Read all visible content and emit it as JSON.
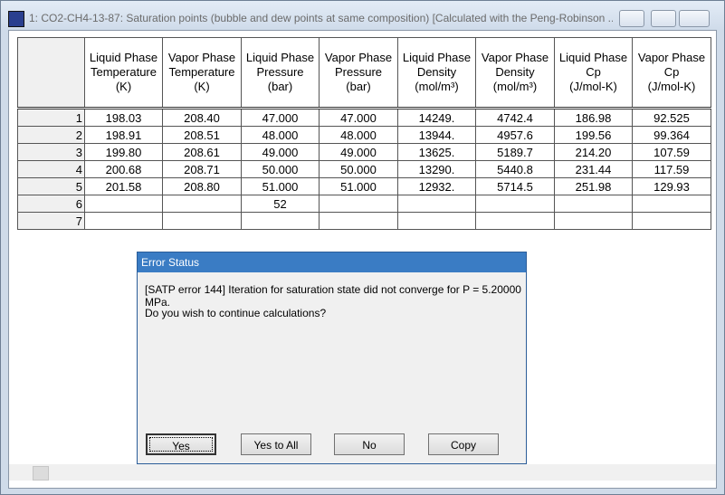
{
  "window": {
    "title": "1: CO2-CH4-13-87: Saturation points (bubble and dew points at same composition) [Calculated with the Peng-Robinson ..."
  },
  "table": {
    "headers": [
      [
        "Liquid Phase",
        "Temperature",
        "(K)"
      ],
      [
        "Vapor Phase",
        "Temperature",
        "(K)"
      ],
      [
        "Liquid Phase",
        "Pressure",
        "(bar)"
      ],
      [
        "Vapor Phase",
        "Pressure",
        "(bar)"
      ],
      [
        "Liquid Phase",
        "Density",
        "(mol/m³)"
      ],
      [
        "Vapor Phase",
        "Density",
        "(mol/m³)"
      ],
      [
        "Liquid Phase",
        "Cp",
        "(J/mol-K)"
      ],
      [
        "Vapor Phase",
        "Cp",
        "(J/mol-K)"
      ]
    ],
    "rows": [
      [
        "1",
        "198.03",
        "208.40",
        "47.000",
        "47.000",
        "14249.",
        "4742.4",
        "186.98",
        "92.525"
      ],
      [
        "2",
        "198.91",
        "208.51",
        "48.000",
        "48.000",
        "13944.",
        "4957.6",
        "199.56",
        "99.364"
      ],
      [
        "3",
        "199.80",
        "208.61",
        "49.000",
        "49.000",
        "13625.",
        "5189.7",
        "214.20",
        "107.59"
      ],
      [
        "4",
        "200.68",
        "208.71",
        "50.000",
        "50.000",
        "13290.",
        "5440.8",
        "231.44",
        "117.59"
      ],
      [
        "5",
        "201.58",
        "208.80",
        "51.000",
        "51.000",
        "12932.",
        "5714.5",
        "251.98",
        "129.93"
      ],
      [
        "6",
        null,
        null,
        "52",
        null,
        null,
        null,
        null,
        null
      ],
      [
        "7",
        null,
        null,
        null,
        null,
        null,
        null,
        null,
        null
      ]
    ]
  },
  "dialog": {
    "title": "Error Status",
    "message": "[SATP error 144] Iteration for saturation state did not converge for P = 5.20000 MPa.",
    "question": "Do you wish to continue calculations?",
    "buttons": [
      "Yes",
      "Yes to All",
      "No",
      "Copy"
    ]
  }
}
